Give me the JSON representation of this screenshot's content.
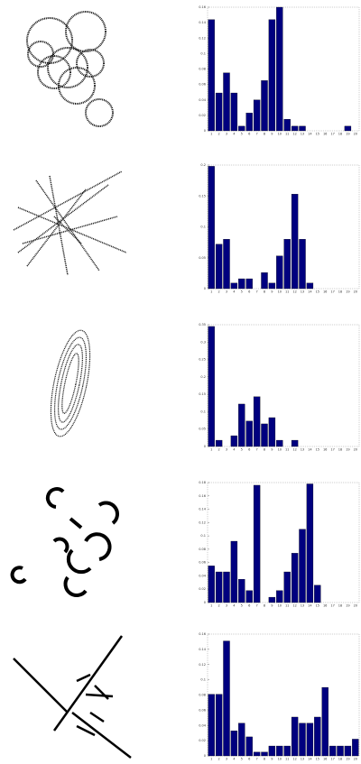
{
  "chart_data": [
    {
      "type": "bar",
      "categories": [
        "1",
        "2",
        "3",
        "4",
        "5",
        "6",
        "7",
        "8",
        "9",
        "10",
        "11",
        "12",
        "13",
        "14",
        "15",
        "16",
        "17",
        "18",
        "19",
        "20"
      ],
      "values": [
        0.144,
        0.049,
        0.075,
        0.049,
        0.006,
        0.023,
        0.04,
        0.065,
        0.144,
        0.16,
        0.015,
        0.006,
        0.006,
        0,
        0,
        0,
        0,
        0,
        0.006,
        0
      ],
      "color": "#00007f",
      "ylim": [
        0,
        0.16
      ],
      "yticks": [
        0,
        0.02,
        0.04,
        0.06,
        0.08,
        0.1,
        0.12,
        0.14,
        0.16
      ]
    },
    {
      "type": "bar",
      "categories": [
        "1",
        "2",
        "3",
        "4",
        "5",
        "6",
        "7",
        "8",
        "9",
        "10",
        "11",
        "12",
        "13",
        "14",
        "15",
        "16",
        "17",
        "18",
        "19",
        "20"
      ],
      "values": [
        0.198,
        0.072,
        0.08,
        0.009,
        0.016,
        0.016,
        0,
        0.026,
        0.009,
        0.053,
        0.08,
        0.153,
        0.08,
        0.009,
        0,
        0,
        0,
        0,
        0,
        0
      ],
      "color": "#00007f",
      "ylim": [
        0,
        0.2
      ],
      "yticks": [
        0,
        0.05,
        0.1,
        0.15,
        0.2
      ]
    },
    {
      "type": "bar",
      "categories": [
        "1",
        "2",
        "3",
        "4",
        "5",
        "6",
        "7",
        "8",
        "9",
        "10",
        "11",
        "12",
        "13",
        "14",
        "15",
        "16",
        "17",
        "18",
        "19",
        "20"
      ],
      "values": [
        0.345,
        0.018,
        0,
        0.031,
        0.122,
        0.073,
        0.143,
        0.065,
        0.083,
        0.018,
        0,
        0.018,
        0,
        0,
        0,
        0,
        0,
        0,
        0,
        0
      ],
      "color": "#00007f",
      "ylim": [
        0,
        0.35
      ],
      "yticks": [
        0,
        0.05,
        0.1,
        0.15,
        0.2,
        0.25,
        0.3,
        0.35
      ]
    },
    {
      "type": "bar",
      "categories": [
        "1",
        "2",
        "3",
        "4",
        "5",
        "6",
        "7",
        "8",
        "9",
        "10",
        "11",
        "12",
        "13",
        "14",
        "15",
        "16",
        "17",
        "18",
        "19",
        "20"
      ],
      "values": [
        0.055,
        0.046,
        0.046,
        0.092,
        0.035,
        0.018,
        0.176,
        0,
        0.008,
        0.018,
        0.046,
        0.074,
        0.11,
        0.178,
        0.026,
        0,
        0,
        0,
        0,
        0
      ],
      "color": "#00007f",
      "ylim": [
        0,
        0.18
      ],
      "yticks": [
        0,
        0.02,
        0.04,
        0.06,
        0.08,
        0.1,
        0.12,
        0.14,
        0.16,
        0.18
      ]
    },
    {
      "type": "bar",
      "categories": [
        "1",
        "2",
        "3",
        "4",
        "5",
        "6",
        "7",
        "8",
        "9",
        "10",
        "11",
        "12",
        "13",
        "14",
        "15",
        "16",
        "17",
        "18",
        "19",
        "20"
      ],
      "values": [
        0.081,
        0.081,
        0.151,
        0.033,
        0.043,
        0.025,
        0.005,
        0.005,
        0.013,
        0.013,
        0.013,
        0.051,
        0.043,
        0.043,
        0.051,
        0.09,
        0.013,
        0.013,
        0.013,
        0.022
      ],
      "color": "#00007f",
      "ylim": [
        0,
        0.16
      ],
      "yticks": [
        0,
        0.02,
        0.04,
        0.06,
        0.08,
        0.1,
        0.12,
        0.14,
        0.16
      ]
    }
  ]
}
